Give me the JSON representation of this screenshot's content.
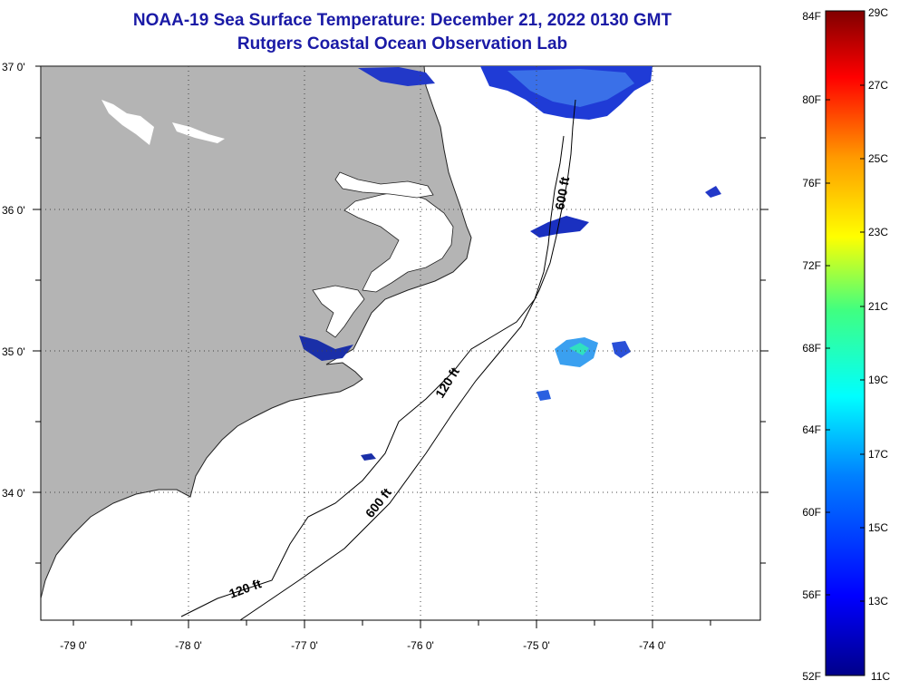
{
  "title": {
    "line1": "NOAA-19 Sea Surface Temperature:  December 21, 2022 0130 GMT",
    "line2": "Rutgers Coastal Ocean Observation Lab"
  },
  "axes": {
    "lat_labels": [
      "37 0'",
      "36 0'",
      "35 0'",
      "34 0'"
    ],
    "lon_labels": [
      "-79 0'",
      "-78 0'",
      "-77 0'",
      "-76 0'",
      "-75 0'",
      "-74 0'"
    ]
  },
  "contours": {
    "shelf_label": "120 ft",
    "slope_label": "600 ft"
  },
  "colorbar": {
    "f_labels": [
      "84F",
      "80F",
      "76F",
      "72F",
      "68F",
      "64F",
      "60F",
      "56F",
      "52F"
    ],
    "c_labels": [
      "29C",
      "27C",
      "25C",
      "23C",
      "21C",
      "19C",
      "17C",
      "15C",
      "13C",
      "11C"
    ]
  },
  "colors": {
    "land": "#b4b4b4",
    "title": "#1a1aa6",
    "ocean": "#ffffff"
  }
}
